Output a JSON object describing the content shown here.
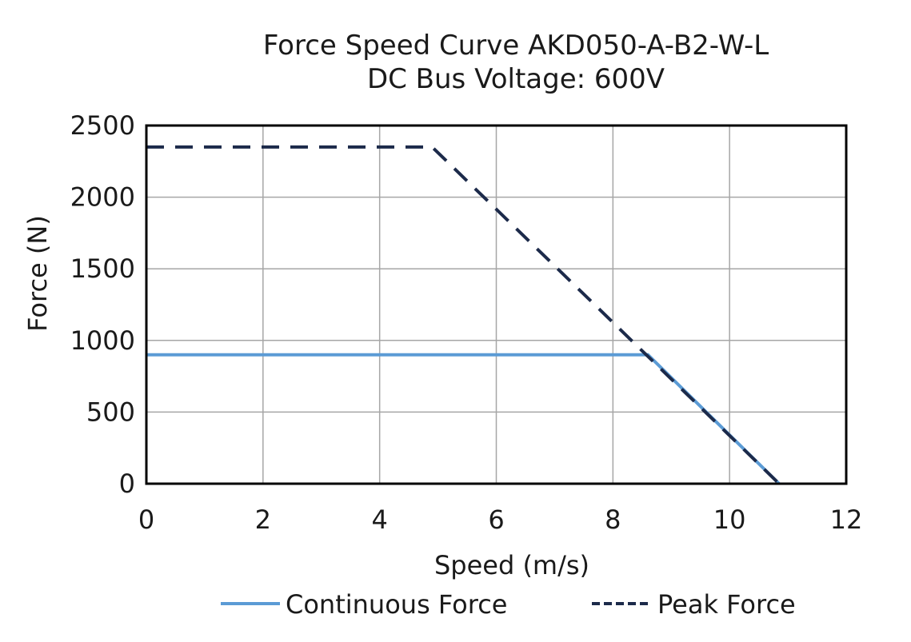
{
  "chart_data": {
    "type": "line",
    "title": "Force Speed Curve AKD050-A-B2-W-L",
    "subtitle": "DC Bus Voltage: 600V",
    "xlabel": "Speed (m/s)",
    "ylabel": "Force (N)",
    "xlim": [
      0,
      12
    ],
    "ylim": [
      0,
      2500
    ],
    "xticks": [
      0,
      2,
      4,
      6,
      8,
      10,
      12
    ],
    "yticks": [
      0,
      500,
      1000,
      1500,
      2000,
      2500
    ],
    "grid": true,
    "legend_position": "bottom",
    "series": [
      {
        "name": "Continuous Force",
        "style": "solid",
        "color": "#5b9bd5",
        "x": [
          0,
          8.6,
          10.85
        ],
        "y": [
          900,
          900,
          0
        ]
      },
      {
        "name": "Peak Force",
        "style": "dashed",
        "color": "#1c2a4a",
        "x": [
          0,
          4.9,
          10.85
        ],
        "y": [
          2350,
          2350,
          0
        ]
      }
    ]
  }
}
